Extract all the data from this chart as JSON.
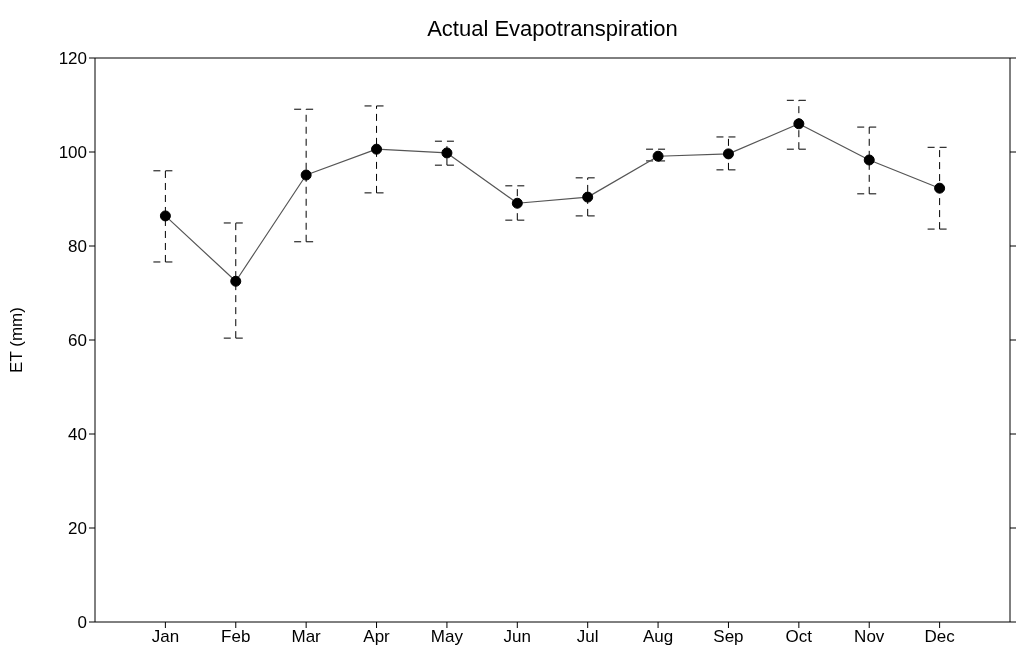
{
  "chart_data": {
    "type": "line",
    "title": "Actual Evapotranspiration",
    "ylabel": "ET (mm)",
    "categories": [
      "Jan",
      "Feb",
      "Mar",
      "Apr",
      "May",
      "Jun",
      "Jul",
      "Aug",
      "Sep",
      "Oct",
      "Nov",
      "Dec"
    ],
    "series": [
      {
        "color": "#000000",
        "values": [
          86.4,
          72.5,
          95.1,
          100.6,
          99.8,
          89.1,
          90.4,
          99.1,
          99.6,
          106,
          98.3,
          92.3
        ],
        "errors": [
          [
            76.6,
            96
          ],
          [
            60.4,
            84.9
          ],
          [
            80.9,
            109.1
          ],
          [
            91.3,
            109.8
          ],
          [
            97.2,
            102.3
          ],
          [
            85.5,
            92.8
          ],
          [
            86.4,
            94.5
          ],
          [
            98.1,
            100.6
          ],
          [
            96.2,
            103.2
          ],
          [
            100.6,
            111
          ],
          [
            91.1,
            105.3
          ],
          [
            83.6,
            101
          ]
        ]
      }
    ],
    "ylim": [
      0,
      120
    ],
    "yticks": [
      0,
      20,
      40,
      60,
      80,
      100,
      120
    ],
    "marker": "circle",
    "line_style": "solid"
  }
}
